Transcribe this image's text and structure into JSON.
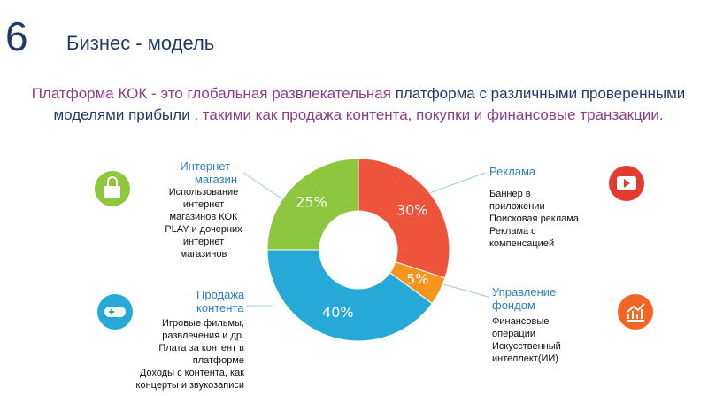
{
  "header": {
    "number": "6",
    "title": "Бизнес - модель"
  },
  "intro": [
    {
      "text": "Платформа КОК - это глобальная развлекательная",
      "color": "#8e3b8c"
    },
    {
      "text": "платформа с различными проверенными моделями прибыли",
      "color": "#1f3a6b"
    },
    {
      "text": ", такими как продажа контента, покупки и финансовые транзакции.",
      "color": "#8e3b8c"
    }
  ],
  "chart_data": {
    "type": "donut",
    "categories": [
      "Реклама",
      "Управление фондом",
      "Продажа контента",
      "Интернет - магазин"
    ],
    "values": [
      30,
      5,
      40,
      25
    ],
    "value_labels": [
      "30%",
      "5%",
      "40%",
      "25%"
    ],
    "colors": [
      "#ee543b",
      "#f7941d",
      "#27a9d8",
      "#8dc63f"
    ]
  },
  "descriptions": [
    [
      "Баннер в",
      "приложении",
      "Поисковая реклама",
      "Реклама с",
      "компенсацией"
    ],
    [
      "Финансовые",
      "операции",
      "Искусственный",
      "интеллект(ИИ)"
    ],
    [
      "Игровые фильмы,",
      "развлечения и др.",
      "Плата за контент в",
      "платформе",
      "Доходы с контента, как",
      "концерты и звукозаписи"
    ],
    [
      "Использование",
      "интернет",
      "магазинов КОК",
      "PLAY и дочерних",
      "интернет",
      "магазинов"
    ]
  ]
}
